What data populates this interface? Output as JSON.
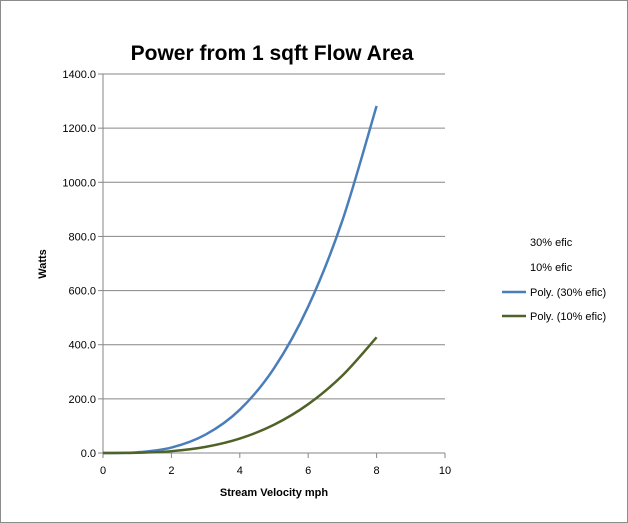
{
  "chart_data": {
    "type": "line",
    "title": "Power from 1 sqft Flow Area",
    "xlabel": "Stream Velocity mph",
    "ylabel": "Watts",
    "xlim": [
      0,
      10
    ],
    "ylim": [
      0,
      1400
    ],
    "xticks": [
      "0",
      "2",
      "4",
      "6",
      "8",
      "10"
    ],
    "yticks": [
      "0.0",
      "200.0",
      "400.0",
      "600.0",
      "800.0",
      "1000.0",
      "1200.0",
      "1400.0"
    ],
    "grid": "horizontal",
    "legend_position": "right",
    "legend": [
      "30% efic",
      "10% efic",
      "Poly. (30% efic)",
      "Poly. (10% efic)"
    ],
    "series": [
      {
        "name": "Poly. (30% efic)",
        "color": "#4a7ebb",
        "x": [
          0,
          1,
          2,
          3,
          4,
          5,
          6,
          7,
          8
        ],
        "y": [
          0,
          2.5,
          20,
          68,
          160,
          313,
          541,
          859,
          1282
        ]
      },
      {
        "name": "Poly. (10% efic)",
        "color": "#4f6228",
        "x": [
          0,
          1,
          2,
          3,
          4,
          5,
          6,
          7,
          8
        ],
        "y": [
          0,
          0.8,
          6.7,
          22.6,
          53.4,
          104.3,
          180.3,
          286.3,
          427.3
        ]
      }
    ]
  }
}
